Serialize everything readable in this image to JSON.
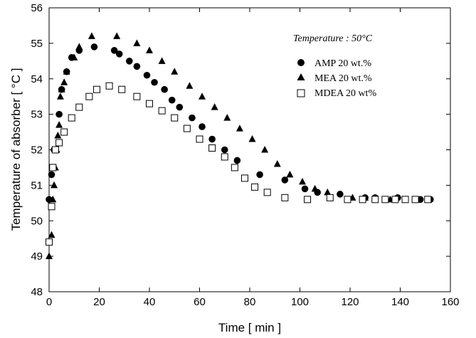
{
  "chart_data": {
    "type": "scatter",
    "title": "",
    "annotation": "Temperature : 50",
    "annotation_unit": "°C",
    "xlabel": "Time [ min ]",
    "ylabel": "Temperature of absorber  [ °C ]",
    "xlim": [
      0,
      160
    ],
    "ylim": [
      48,
      56
    ],
    "xticks": [
      0,
      20,
      40,
      60,
      80,
      100,
      120,
      140,
      160
    ],
    "yticks": [
      48,
      49,
      50,
      51,
      52,
      53,
      54,
      55,
      56
    ],
    "grid": false,
    "legend_position": "top-right",
    "series": [
      {
        "name": "AMP 20 wt.%",
        "marker": "filled-circle",
        "color": "#000000",
        "points": [
          [
            0,
            50.6
          ],
          [
            1,
            51.3
          ],
          [
            2,
            52.0
          ],
          [
            4,
            53.0
          ],
          [
            5,
            53.7
          ],
          [
            7,
            54.2
          ],
          [
            9,
            54.6
          ],
          [
            12,
            54.8
          ],
          [
            18,
            54.9
          ],
          [
            26,
            54.8
          ],
          [
            28,
            54.7
          ],
          [
            32,
            54.5
          ],
          [
            35,
            54.35
          ],
          [
            39,
            54.1
          ],
          [
            42,
            53.9
          ],
          [
            46,
            53.7
          ],
          [
            49,
            53.4
          ],
          [
            52,
            53.2
          ],
          [
            57,
            52.9
          ],
          [
            61,
            52.65
          ],
          [
            65,
            52.3
          ],
          [
            70,
            52.0
          ],
          [
            75,
            51.7
          ],
          [
            84,
            51.3
          ],
          [
            94,
            51.15
          ],
          [
            102,
            50.9
          ],
          [
            107,
            50.8
          ],
          [
            116,
            50.75
          ],
          [
            126,
            50.65
          ],
          [
            130,
            50.65
          ],
          [
            139,
            50.65
          ],
          [
            148,
            50.6
          ],
          [
            152,
            50.6
          ]
        ]
      },
      {
        "name": "MEA 20 wt.%",
        "marker": "filled-triangle",
        "color": "#000000",
        "points": [
          [
            0,
            49.0
          ],
          [
            1,
            49.6
          ],
          [
            1.5,
            50.6
          ],
          [
            2,
            51.0
          ],
          [
            2.5,
            51.5
          ],
          [
            3,
            52.0
          ],
          [
            3.5,
            52.4
          ],
          [
            4,
            52.7
          ],
          [
            4.5,
            53.5
          ],
          [
            5,
            53.7
          ],
          [
            6,
            53.9
          ],
          [
            7,
            54.2
          ],
          [
            10,
            54.6
          ],
          [
            12,
            54.9
          ],
          [
            17,
            55.2
          ],
          [
            27,
            55.2
          ],
          [
            35,
            55.0
          ],
          [
            40,
            54.8
          ],
          [
            45,
            54.5
          ],
          [
            50,
            54.2
          ],
          [
            56,
            53.8
          ],
          [
            61,
            53.5
          ],
          [
            66,
            53.2
          ],
          [
            71,
            52.9
          ],
          [
            76,
            52.6
          ],
          [
            81,
            52.3
          ],
          [
            86,
            52.0
          ],
          [
            91,
            51.6
          ],
          [
            96,
            51.3
          ],
          [
            101,
            51.1
          ],
          [
            106,
            50.9
          ],
          [
            111,
            50.8
          ],
          [
            121,
            50.65
          ],
          [
            126,
            50.65
          ],
          [
            136,
            50.6
          ]
        ]
      },
      {
        "name": "MDEA 20 wt%",
        "marker": "open-square",
        "color": "#000000",
        "points": [
          [
            0,
            49.4
          ],
          [
            1,
            50.4
          ],
          [
            1.5,
            51.5
          ],
          [
            2.5,
            52.0
          ],
          [
            4,
            52.2
          ],
          [
            6,
            52.5
          ],
          [
            9,
            52.9
          ],
          [
            12,
            53.2
          ],
          [
            16,
            53.5
          ],
          [
            19,
            53.7
          ],
          [
            24,
            53.8
          ],
          [
            29,
            53.7
          ],
          [
            35,
            53.5
          ],
          [
            40,
            53.3
          ],
          [
            45,
            53.1
          ],
          [
            50,
            52.9
          ],
          [
            55,
            52.6
          ],
          [
            60,
            52.3
          ],
          [
            65,
            52.05
          ],
          [
            70,
            51.8
          ],
          [
            74,
            51.5
          ],
          [
            78,
            51.2
          ],
          [
            82,
            50.95
          ],
          [
            87,
            50.8
          ],
          [
            94,
            50.65
          ],
          [
            103,
            50.6
          ],
          [
            112,
            50.65
          ],
          [
            119,
            50.6
          ],
          [
            125,
            50.6
          ],
          [
            130,
            50.6
          ],
          [
            134,
            50.6
          ],
          [
            138,
            50.6
          ],
          [
            142,
            50.6
          ],
          [
            146,
            50.6
          ],
          [
            151,
            50.6
          ]
        ]
      }
    ]
  }
}
